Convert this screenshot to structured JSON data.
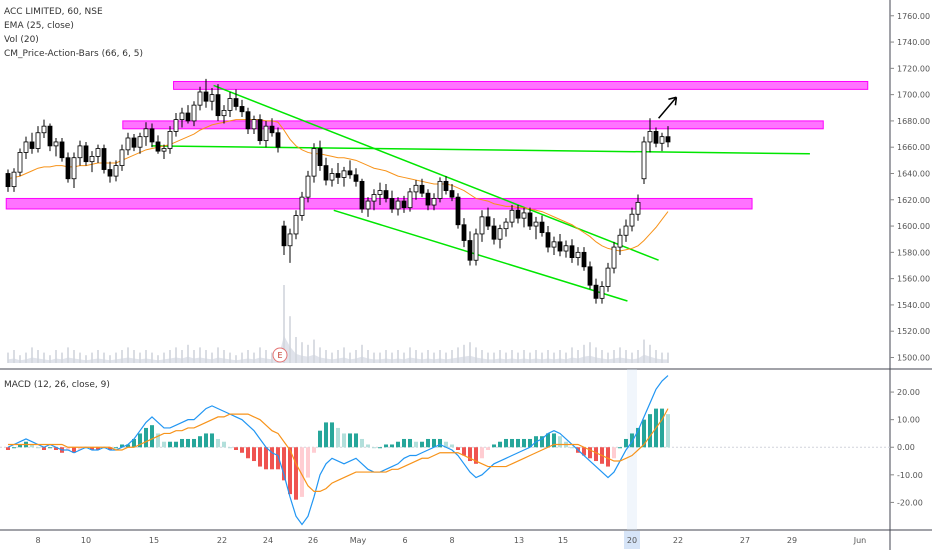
{
  "header": {
    "symbol": "ACC LIMITED, 60, NSE",
    "ema": "EMA (25, close)",
    "vol": "Vol (20)",
    "cm": "CM_Price-Action-Bars (66, 6, 5)"
  },
  "macd_header": "MACD (12, 26, close, 9)",
  "event_marker": "E",
  "colors": {
    "up": "#26a69a",
    "down": "#ef5350",
    "candle": "#000000",
    "zone": "#ff00ff",
    "trend": "#00e600",
    "ema": "#f7931a",
    "macd": "#2196f3",
    "signal": "#f7931a",
    "hist_up_strong": "#26a69a",
    "hist_up_weak": "#b2dfdb",
    "hist_down_strong": "#ef5350",
    "hist_down_weak": "#ffcdd2",
    "volume": "#d1d4dc",
    "highlight": "#d6e4f7"
  },
  "chart_data": [
    {
      "type": "candlestick",
      "title": "ACC LIMITED, 60, NSE",
      "ylim": [
        1492,
        1772
      ],
      "y_ticks": [
        1500,
        1520,
        1540,
        1560,
        1580,
        1600,
        1620,
        1640,
        1660,
        1680,
        1700,
        1720,
        1740,
        1760
      ],
      "x_ticks": [
        "8",
        "10",
        "15",
        "22",
        "24",
        "26",
        "May",
        "6",
        "8",
        "13",
        "15",
        "20",
        "22",
        "27",
        "29",
        "Jun"
      ],
      "x_highlight": "20",
      "candles_ohlc": [
        [
          1640,
          1643,
          1626,
          1630
        ],
        [
          1630,
          1644,
          1626,
          1641
        ],
        [
          1641,
          1659,
          1638,
          1656
        ],
        [
          1656,
          1668,
          1651,
          1664
        ],
        [
          1664,
          1671,
          1655,
          1659
        ],
        [
          1659,
          1676,
          1656,
          1671
        ],
        [
          1671,
          1681,
          1667,
          1676
        ],
        [
          1676,
          1678,
          1657,
          1661
        ],
        [
          1661,
          1667,
          1653,
          1664
        ],
        [
          1664,
          1667,
          1649,
          1652
        ],
        [
          1652,
          1656,
          1633,
          1636
        ],
        [
          1636,
          1656,
          1629,
          1652
        ],
        [
          1652,
          1665,
          1646,
          1661
        ],
        [
          1661,
          1664,
          1646,
          1649
        ],
        [
          1649,
          1657,
          1641,
          1653
        ],
        [
          1653,
          1662,
          1648,
          1659
        ],
        [
          1659,
          1662,
          1640,
          1643
        ],
        [
          1643,
          1649,
          1633,
          1638
        ],
        [
          1638,
          1650,
          1634,
          1646
        ],
        [
          1646,
          1662,
          1642,
          1658
        ],
        [
          1658,
          1671,
          1654,
          1667
        ],
        [
          1667,
          1670,
          1657,
          1660
        ],
        [
          1660,
          1671,
          1655,
          1668
        ],
        [
          1668,
          1679,
          1661,
          1674
        ],
        [
          1674,
          1678,
          1660,
          1664
        ],
        [
          1664,
          1669,
          1655,
          1657
        ],
        [
          1657,
          1662,
          1651,
          1659
        ],
        [
          1659,
          1676,
          1655,
          1672
        ],
        [
          1672,
          1686,
          1668,
          1681
        ],
        [
          1681,
          1690,
          1675,
          1686
        ],
        [
          1686,
          1692,
          1678,
          1680
        ],
        [
          1680,
          1695,
          1676,
          1692
        ],
        [
          1692,
          1706,
          1688,
          1702
        ],
        [
          1702,
          1712,
          1690,
          1695
        ],
        [
          1695,
          1705,
          1688,
          1700
        ],
        [
          1700,
          1708,
          1680,
          1684
        ],
        [
          1684,
          1692,
          1678,
          1688
        ],
        [
          1688,
          1702,
          1683,
          1697
        ],
        [
          1697,
          1704,
          1688,
          1691
        ],
        [
          1691,
          1696,
          1683,
          1687
        ],
        [
          1687,
          1690,
          1670,
          1674
        ],
        [
          1674,
          1684,
          1670,
          1681
        ],
        [
          1681,
          1685,
          1662,
          1665
        ],
        [
          1665,
          1680,
          1660,
          1676
        ],
        [
          1676,
          1682,
          1668,
          1671
        ],
        [
          1671,
          1675,
          1656,
          1660
        ],
        [
          1600,
          1604,
          1578,
          1585
        ],
        [
          1585,
          1598,
          1572,
          1594
        ],
        [
          1594,
          1612,
          1590,
          1608
        ],
        [
          1608,
          1626,
          1604,
          1622
        ],
        [
          1622,
          1642,
          1618,
          1638
        ],
        [
          1638,
          1663,
          1633,
          1659
        ],
        [
          1659,
          1665,
          1642,
          1646
        ],
        [
          1646,
          1652,
          1631,
          1635
        ],
        [
          1635,
          1644,
          1630,
          1640
        ],
        [
          1640,
          1648,
          1632,
          1637
        ],
        [
          1637,
          1645,
          1630,
          1642
        ],
        [
          1642,
          1650,
          1636,
          1639
        ],
        [
          1639,
          1644,
          1630,
          1634
        ],
        [
          1634,
          1636,
          1610,
          1613
        ],
        [
          1613,
          1622,
          1607,
          1619
        ],
        [
          1619,
          1628,
          1612,
          1624
        ],
        [
          1624,
          1633,
          1616,
          1627
        ],
        [
          1627,
          1632,
          1618,
          1621
        ],
        [
          1621,
          1627,
          1610,
          1613
        ],
        [
          1613,
          1622,
          1608,
          1619
        ],
        [
          1619,
          1623,
          1610,
          1614
        ],
        [
          1614,
          1629,
          1611,
          1626
        ],
        [
          1626,
          1635,
          1620,
          1631
        ],
        [
          1631,
          1636,
          1622,
          1625
        ],
        [
          1625,
          1628,
          1612,
          1616
        ],
        [
          1616,
          1625,
          1612,
          1621
        ],
        [
          1621,
          1637,
          1618,
          1634
        ],
        [
          1634,
          1638,
          1624,
          1627
        ],
        [
          1627,
          1632,
          1619,
          1622
        ],
        [
          1622,
          1625,
          1598,
          1601
        ],
        [
          1601,
          1606,
          1584,
          1589
        ],
        [
          1589,
          1596,
          1570,
          1574
        ],
        [
          1574,
          1598,
          1570,
          1594
        ],
        [
          1594,
          1612,
          1588,
          1607
        ],
        [
          1607,
          1614,
          1597,
          1600
        ],
        [
          1600,
          1606,
          1586,
          1590
        ],
        [
          1590,
          1601,
          1583,
          1598
        ],
        [
          1598,
          1606,
          1592,
          1603
        ],
        [
          1603,
          1616,
          1599,
          1612
        ],
        [
          1612,
          1616,
          1602,
          1606
        ],
        [
          1606,
          1614,
          1599,
          1610
        ],
        [
          1610,
          1614,
          1597,
          1600
        ],
        [
          1600,
          1607,
          1590,
          1603
        ],
        [
          1603,
          1608,
          1592,
          1595
        ],
        [
          1595,
          1600,
          1580,
          1584
        ],
        [
          1584,
          1592,
          1578,
          1588
        ],
        [
          1588,
          1594,
          1577,
          1581
        ],
        [
          1581,
          1589,
          1576,
          1585
        ],
        [
          1585,
          1590,
          1572,
          1576
        ],
        [
          1576,
          1584,
          1570,
          1580
        ],
        [
          1580,
          1584,
          1566,
          1569
        ],
        [
          1569,
          1573,
          1552,
          1555
        ],
        [
          1555,
          1560,
          1541,
          1545
        ],
        [
          1545,
          1558,
          1541,
          1554
        ],
        [
          1554,
          1572,
          1550,
          1568
        ],
        [
          1568,
          1588,
          1564,
          1584
        ],
        [
          1584,
          1598,
          1578,
          1593
        ],
        [
          1593,
          1605,
          1588,
          1600
        ],
        [
          1600,
          1614,
          1596,
          1609
        ],
        [
          1609,
          1624,
          1604,
          1618
        ],
        [
          1636,
          1668,
          1632,
          1664
        ],
        [
          1664,
          1682,
          1656,
          1672
        ],
        [
          1672,
          1675,
          1660,
          1663
        ],
        [
          1663,
          1671,
          1657,
          1668
        ],
        [
          1668,
          1676,
          1660,
          1664
        ]
      ],
      "ema_line": [
        1636,
        1637,
        1638,
        1640,
        1642,
        1644,
        1645,
        1645,
        1646,
        1646,
        1645,
        1645,
        1646,
        1646,
        1647,
        1648,
        1648,
        1648,
        1648,
        1650,
        1652,
        1654,
        1656,
        1658,
        1659,
        1660,
        1661,
        1662,
        1664,
        1666,
        1668,
        1670,
        1673,
        1675,
        1677,
        1678,
        1679,
        1680,
        1681,
        1681,
        1681,
        1681,
        1681,
        1680,
        1680,
        1679,
        1673,
        1666,
        1661,
        1658,
        1656,
        1655,
        1655,
        1654,
        1653,
        1652,
        1652,
        1651,
        1650,
        1648,
        1646,
        1644,
        1643,
        1642,
        1640,
        1638,
        1637,
        1636,
        1635,
        1634,
        1633,
        1632,
        1632,
        1632,
        1631,
        1629,
        1627,
        1624,
        1621,
        1620,
        1619,
        1617,
        1616,
        1615,
        1615,
        1614,
        1614,
        1613,
        1612,
        1611,
        1609,
        1607,
        1605,
        1603,
        1601,
        1598,
        1595,
        1592,
        1588,
        1585,
        1583,
        1582,
        1581,
        1582,
        1583,
        1585,
        1589,
        1594,
        1599,
        1605,
        1611
      ],
      "zones": [
        {
          "y0": 1704,
          "y1": 1710,
          "x0": 0.195,
          "x1": 0.975
        },
        {
          "y0": 1674,
          "y1": 1680,
          "x0": 0.138,
          "x1": 0.925
        },
        {
          "y0": 1613,
          "y1": 1621,
          "x0": 0.007,
          "x1": 0.845
        }
      ],
      "trendlines": [
        {
          "from": [
            0.17,
            1661
          ],
          "to": [
            0.91,
            1655
          ]
        },
        {
          "from": [
            0.24,
            1707
          ],
          "to": [
            0.74,
            1574
          ]
        },
        {
          "from": [
            0.375,
            1612
          ],
          "to": [
            0.705,
            1543
          ]
        }
      ],
      "projection_arrow": {
        "from": [
          0.74,
          1682
        ],
        "to": [
          0.76,
          1698
        ]
      },
      "volume": [
        4,
        5,
        3,
        4,
        6,
        5,
        4,
        3,
        5,
        4,
        6,
        5,
        4,
        3,
        4,
        5,
        4,
        3,
        4,
        5,
        6,
        5,
        4,
        5,
        4,
        3,
        4,
        5,
        6,
        5,
        7,
        5,
        6,
        5,
        4,
        6,
        5,
        4,
        3,
        4,
        5,
        4,
        6,
        5,
        4,
        5,
        30,
        18,
        10,
        8,
        7,
        9,
        6,
        5,
        4,
        5,
        6,
        4,
        5,
        7,
        5,
        4,
        4,
        5,
        4,
        5,
        4,
        6,
        5,
        4,
        5,
        4,
        5,
        4,
        5,
        6,
        7,
        8,
        6,
        5,
        4,
        4,
        5,
        4,
        5,
        4,
        5,
        4,
        5,
        4,
        5,
        4,
        5,
        4,
        6,
        5,
        7,
        8,
        6,
        5,
        4,
        5,
        6,
        5,
        4,
        5,
        9,
        7,
        5,
        4,
        4
      ]
    },
    {
      "type": "macd",
      "title": "MACD (12, 26, close, 9)",
      "ylim": [
        -30,
        28
      ],
      "y_ticks": [
        -20,
        -10,
        0,
        10,
        20
      ],
      "macd_line": [
        0,
        1,
        2,
        3,
        2,
        1,
        0,
        1,
        0,
        -1,
        -1,
        -2,
        -1,
        0,
        -1,
        -1,
        0,
        -1,
        -1,
        0,
        1,
        3,
        6,
        9,
        11,
        9,
        7,
        7,
        8,
        9,
        10,
        10,
        12,
        14,
        15,
        14,
        13,
        12,
        11,
        10,
        8,
        6,
        3,
        0,
        -2,
        -3,
        -10,
        -18,
        -25,
        -28,
        -25,
        -18,
        -10,
        -6,
        -4,
        -5,
        -6,
        -5,
        -4,
        -6,
        -8,
        -9,
        -9,
        -8,
        -7,
        -6,
        -4,
        -3,
        -3,
        -2,
        -1,
        0,
        1,
        0,
        -1,
        -3,
        -6,
        -9,
        -11,
        -10,
        -8,
        -6,
        -5,
        -4,
        -3,
        -2,
        -1,
        0,
        2,
        3,
        5,
        6,
        5,
        3,
        1,
        -1,
        -3,
        -5,
        -7,
        -9,
        -11,
        -9,
        -5,
        -1,
        2,
        6,
        11,
        16,
        21,
        24,
        26
      ],
      "signal_line": [
        1,
        1,
        1,
        1,
        1,
        1,
        1,
        1,
        1,
        1,
        0,
        0,
        0,
        0,
        0,
        0,
        0,
        0,
        -1,
        -1,
        0,
        0,
        1,
        2,
        3,
        4,
        5,
        5,
        6,
        6,
        7,
        7,
        8,
        9,
        10,
        11,
        11,
        12,
        12,
        12,
        12,
        11,
        10,
        8,
        6,
        5,
        2,
        -1,
        -6,
        -10,
        -14,
        -16,
        -16,
        -15,
        -13,
        -12,
        -11,
        -10,
        -9,
        -9,
        -9,
        -9,
        -9,
        -9,
        -8,
        -8,
        -7,
        -6,
        -5,
        -4,
        -4,
        -3,
        -2,
        -2,
        -2,
        -2,
        -3,
        -4,
        -5,
        -6,
        -7,
        -7,
        -7,
        -7,
        -6,
        -5,
        -4,
        -3,
        -2,
        -1,
        0,
        1,
        1,
        1,
        1,
        1,
        0,
        -1,
        -2,
        -3,
        -4,
        -5,
        -5,
        -4,
        -3,
        -1,
        1,
        4,
        7,
        10,
        14
      ],
      "histogram": [
        -1,
        0,
        1,
        2,
        1,
        0,
        -1,
        0,
        -1,
        -2,
        -1,
        -2,
        -1,
        0,
        -1,
        -1,
        0,
        -1,
        0,
        1,
        1,
        3,
        5,
        7,
        8,
        5,
        2,
        2,
        2,
        3,
        3,
        3,
        4,
        5,
        5,
        3,
        2,
        0,
        -1,
        -2,
        -4,
        -5,
        -7,
        -8,
        -8,
        -8,
        -12,
        -17,
        -19,
        -18,
        -11,
        -2,
        6,
        9,
        9,
        7,
        5,
        5,
        5,
        3,
        1,
        0,
        0,
        1,
        1,
        2,
        3,
        3,
        2,
        2,
        3,
        3,
        3,
        2,
        1,
        -1,
        -3,
        -5,
        -6,
        -4,
        -1,
        1,
        2,
        3,
        3,
        3,
        3,
        3,
        4,
        4,
        5,
        5,
        4,
        2,
        0,
        -2,
        -3,
        -4,
        -5,
        -6,
        -7,
        -4,
        0,
        3,
        5,
        7,
        10,
        12,
        14,
        14,
        12
      ]
    }
  ]
}
